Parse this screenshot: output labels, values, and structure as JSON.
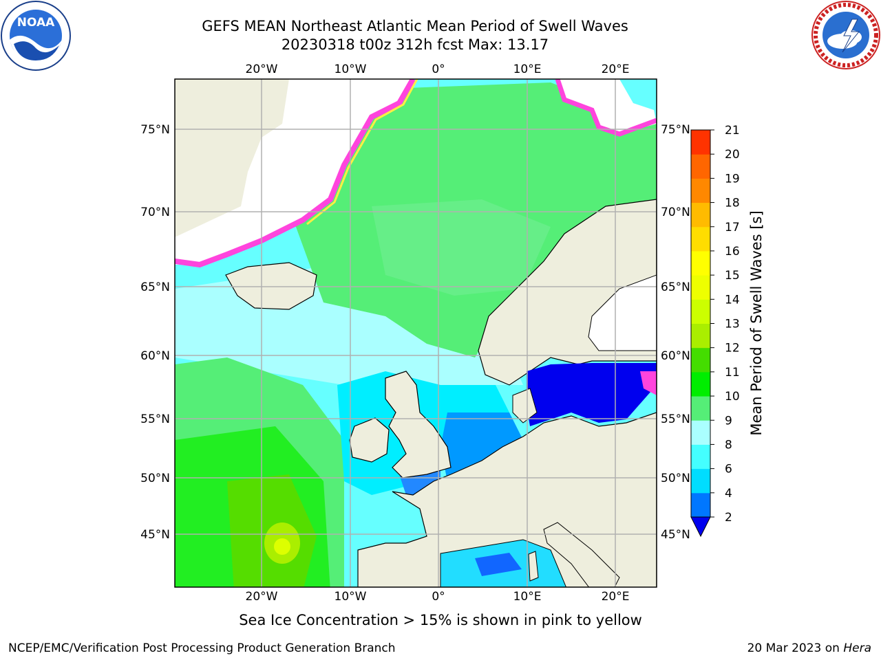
{
  "header": {
    "title_line1": "GEFS MEAN Northeast Atlantic Mean Period of Swell Waves",
    "title_line2": "20230318 t00z 312h fcst   Max: 13.17"
  },
  "map": {
    "lon_labels": [
      "20°W",
      "10°W",
      "0°",
      "10°E",
      "20°E"
    ],
    "lat_labels": [
      "75°N",
      "70°N",
      "65°N",
      "60°N",
      "55°N",
      "50°N",
      "45°N"
    ],
    "colors": {
      "land": "#eeeedd",
      "ocean_light": "#66ffff",
      "grid": "#b0b0b0",
      "ice_pink": "#ff44dd",
      "ice_yellow": "#ffee44"
    }
  },
  "colorbar": {
    "label": "Mean Period of Swell Waves [s]",
    "ticks": [
      "2",
      "4",
      "6",
      "8",
      "9",
      "10",
      "11",
      "12",
      "13",
      "14",
      "15",
      "16",
      "17",
      "18",
      "19",
      "20",
      "21"
    ],
    "colors": [
      "#0077ff",
      "#00ddff",
      "#44ffff",
      "#aaffff",
      "#55ee77",
      "#00ee00",
      "#44dd00",
      "#aaee00",
      "#ccff00",
      "#eeff00",
      "#ffff00",
      "#ffdd00",
      "#ffbb00",
      "#ff8800",
      "#ff6600",
      "#ff3300",
      "#ff0000"
    ],
    "under_color": "#0000ee"
  },
  "footer": {
    "note": "Sea Ice Concentration > 15% is shown in pink to yellow",
    "credit": "NCEP/EMC/Verification Post Processing Product Generation Branch",
    "date": "20 Mar 2023 on ",
    "machine": "Hera"
  },
  "logos": {
    "noaa_text": "NOAA",
    "nws_text": "NATIONAL WEATHER SERVICE"
  }
}
